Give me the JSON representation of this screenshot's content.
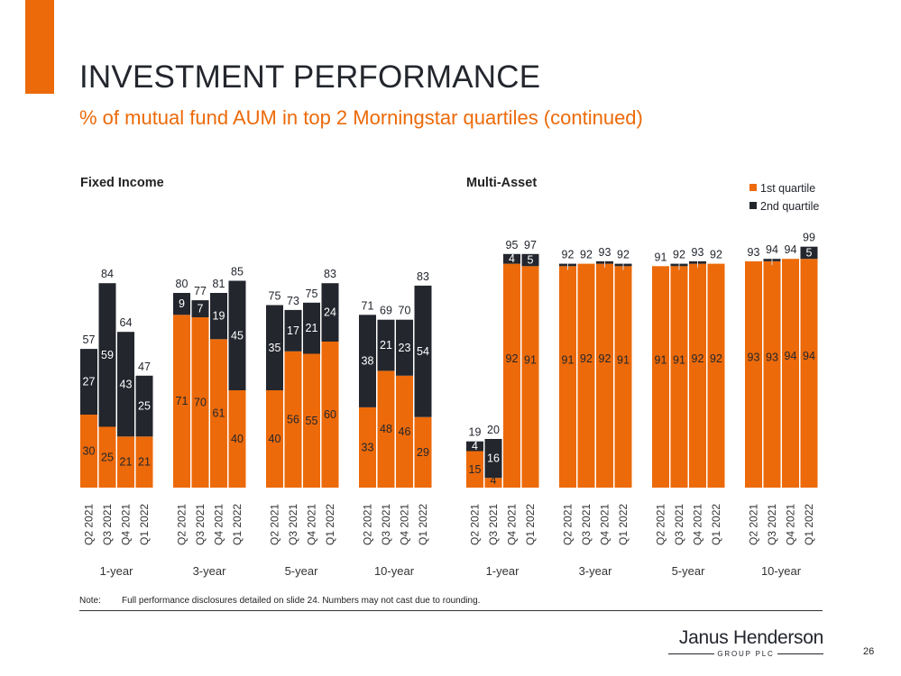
{
  "title": "INVESTMENT PERFORMANCE",
  "subtitle": "% of mutual fund AUM in top 2 Morningstar quartiles (continued)",
  "note_label": "Note:",
  "note_text": "Full performance disclosures detailed on slide 24. Numbers may not cast due to rounding.",
  "logo": {
    "name": "Janus Henderson",
    "sub": "GROUP PLC"
  },
  "page_number": "26",
  "colors": {
    "accent": "#EC6A0A",
    "dark": "#23262D",
    "text": "#222222",
    "tick": "#333333"
  },
  "chart_data": [
    {
      "type": "stacked-bar",
      "title": "Fixed Income",
      "ylim": [
        0,
        100
      ],
      "groups": [
        "1-year",
        "3-year",
        "5-year",
        "10-year"
      ],
      "categories": [
        "Q2 2021",
        "Q3 2021",
        "Q4 2021",
        "Q1 2022"
      ],
      "series": [
        {
          "name": "1st quartile",
          "values": [
            [
              30,
              25,
              21,
              21
            ],
            [
              71,
              70,
              61,
              40
            ],
            [
              40,
              56,
              55,
              60
            ],
            [
              33,
              48,
              46,
              29
            ]
          ]
        },
        {
          "name": "2nd quartile",
          "values": [
            [
              27,
              59,
              43,
              25
            ],
            [
              9,
              7,
              19,
              45
            ],
            [
              35,
              17,
              21,
              24
            ],
            [
              38,
              21,
              23,
              54
            ]
          ]
        }
      ],
      "totals": [
        [
          57,
          84,
          64,
          47
        ],
        [
          80,
          77,
          81,
          85
        ],
        [
          75,
          73,
          75,
          83
        ],
        [
          71,
          69,
          70,
          83
        ]
      ]
    },
    {
      "type": "stacked-bar",
      "title": "Multi-Asset",
      "ylim": [
        0,
        100
      ],
      "legend": [
        "1st quartile",
        "2nd quartile"
      ],
      "legend_position": "top-right",
      "groups": [
        "1-year",
        "3-year",
        "5-year",
        "10-year"
      ],
      "categories": [
        "Q2 2021",
        "Q3 2021",
        "Q4 2021",
        "Q1 2022"
      ],
      "series": [
        {
          "name": "1st quartile",
          "values": [
            [
              15,
              4,
              92,
              91
            ],
            [
              91,
              92,
              92,
              91
            ],
            [
              91,
              91,
              92,
              92
            ],
            [
              93,
              93,
              94,
              94
            ]
          ]
        },
        {
          "name": "2nd quartile",
          "values": [
            [
              4,
              16,
              4,
              5
            ],
            [
              1,
              0,
              1,
              1
            ],
            [
              0,
              1,
              1,
              0
            ],
            [
              0,
              1,
              0,
              5
            ]
          ]
        }
      ],
      "labels_q1": [
        [
          "15",
          "4",
          "92",
          "91"
        ],
        [
          "91",
          "92",
          "92",
          "91"
        ],
        [
          "91",
          "91",
          "92",
          "92"
        ],
        [
          "93",
          "93",
          "94",
          "94"
        ]
      ],
      "labels_q2": [
        [
          "4",
          "16",
          "4",
          "5"
        ],
        [
          "",
          "",
          "",
          ""
        ],
        [
          "",
          "",
          "",
          ""
        ],
        [
          "",
          "",
          "",
          "5"
        ]
      ],
      "totals": [
        [
          19,
          20,
          95,
          97
        ],
        [
          92,
          92,
          93,
          92
        ],
        [
          91,
          92,
          93,
          92
        ],
        [
          93,
          94,
          94,
          99
        ]
      ]
    }
  ]
}
